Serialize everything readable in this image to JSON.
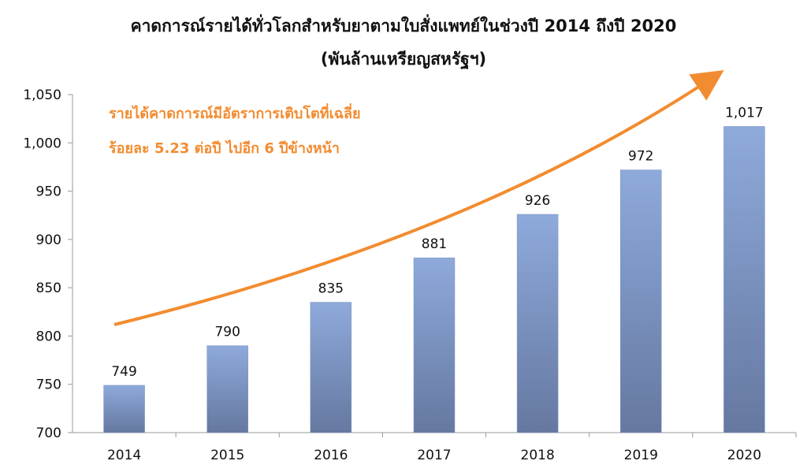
{
  "chart_data": {
    "type": "bar",
    "title": "คาดการณ์รายได้ทั่วโลกสำหรับยาตามใบสั่งแพทย์ในช่วงปี 2014 ถึงปี 2020",
    "subtitle": "(พันล้านเหรียญสหรัฐฯ)",
    "categories": [
      "2014",
      "2015",
      "2016",
      "2017",
      "2018",
      "2019",
      "2020"
    ],
    "values": [
      749,
      790,
      835,
      881,
      926,
      972,
      1017
    ],
    "value_labels": [
      "749",
      "790",
      "835",
      "881",
      "926",
      "972",
      "1,017"
    ],
    "ylim": [
      700,
      1050
    ],
    "yticks": [
      700,
      750,
      800,
      850,
      900,
      950,
      1000,
      1050
    ],
    "ytick_labels": [
      "700",
      "750",
      "800",
      "850",
      "900",
      "950",
      "1,000",
      "1,050"
    ],
    "grid": false,
    "annotation": {
      "lines": [
        "รายได้คาดการณ์มีอัตราการเติบโตที่เฉลี่ย",
        "ร้อยละ 5.23 ต่อปี ไปอีก 6 ปีข้างหน้า"
      ]
    },
    "colors": {
      "bar_top": "#8eaadb",
      "bar_bottom": "#6578a0",
      "arrow": "#f28c30",
      "annotation_text": "#f28c30"
    }
  }
}
